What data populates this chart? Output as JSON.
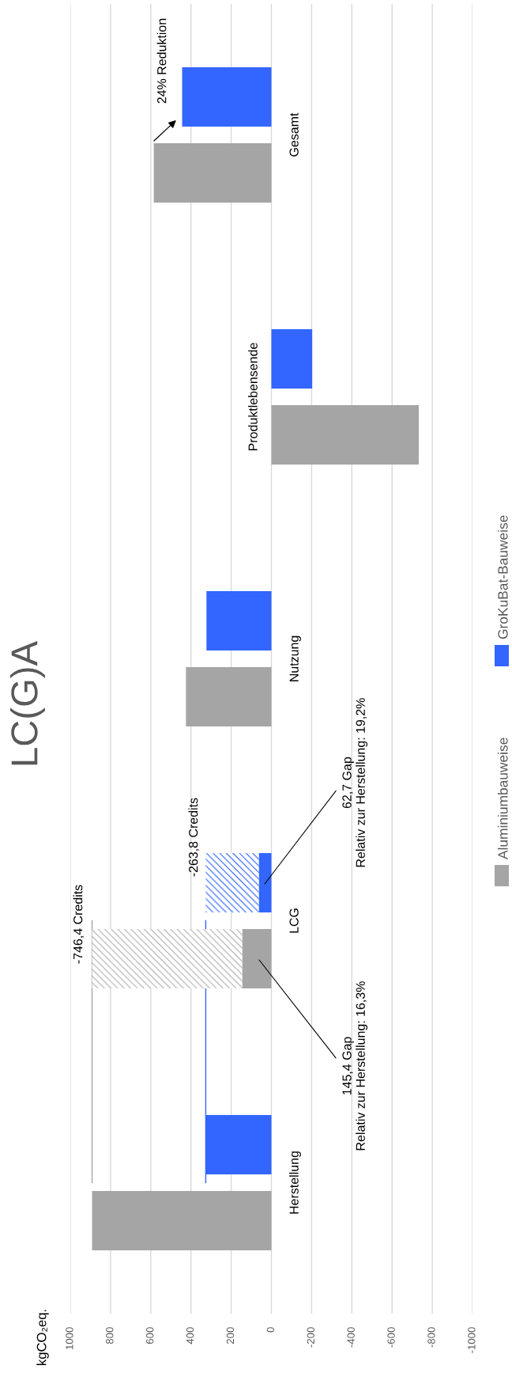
{
  "chart_data": {
    "type": "bar",
    "orientation": "horizontal",
    "title": "LC(G)A",
    "categories": [
      "Gesamt",
      "Produktlebensende",
      "Nutzung",
      "LCG",
      "Herstellung"
    ],
    "series": [
      {
        "name": "Aluminiumbauweise",
        "color": "#a5a5a5",
        "values": [
          585,
          -733,
          425,
          145.4,
          891.8
        ]
      },
      {
        "name": "GroKuBat-Bauweise",
        "color": "#3366ff",
        "values": [
          444,
          -203,
          323,
          62.7,
          326.5
        ]
      },
      {
        "type": "bar",
        "color": "#b0b0b0",
        "base": [
          null,
          null,
          null,
          145.4,
          null
        ],
        "values": [
          null,
          null,
          null,
          746.4,
          null
        ]
      },
      {
        "type": "bar",
        "color": "#3366ff",
        "base": [
          null,
          null,
          null,
          62.7,
          null
        ],
        "values": [
          null,
          null,
          null,
          263.8,
          null
        ]
      },
      {
        "type": "line",
        "color": "#a5a5a5",
        "values": [
          null,
          null,
          null,
          891.8,
          891.8
        ]
      },
      {
        "type": "line",
        "color": "#3366ff",
        "values": [
          null,
          null,
          null,
          326.5,
          326.5
        ]
      }
    ],
    "xlim": [
      1000,
      -1000
    ],
    "xticks": [
      1000,
      800,
      600,
      400,
      200,
      0,
      -200,
      -400,
      -600,
      -800,
      -1000
    ],
    "grid": "x",
    "legend": "right",
    "annotations": [
      "24% Reduktion",
      "-746,4 Credits",
      "-263,8 Credits",
      "145,4 Gap\nRelativ zur Herstellung: 16,3%",
      "62,7 Gap\nRelativ zur Herstellung: 19,2%",
      "kgCO₂eq."
    ]
  }
}
